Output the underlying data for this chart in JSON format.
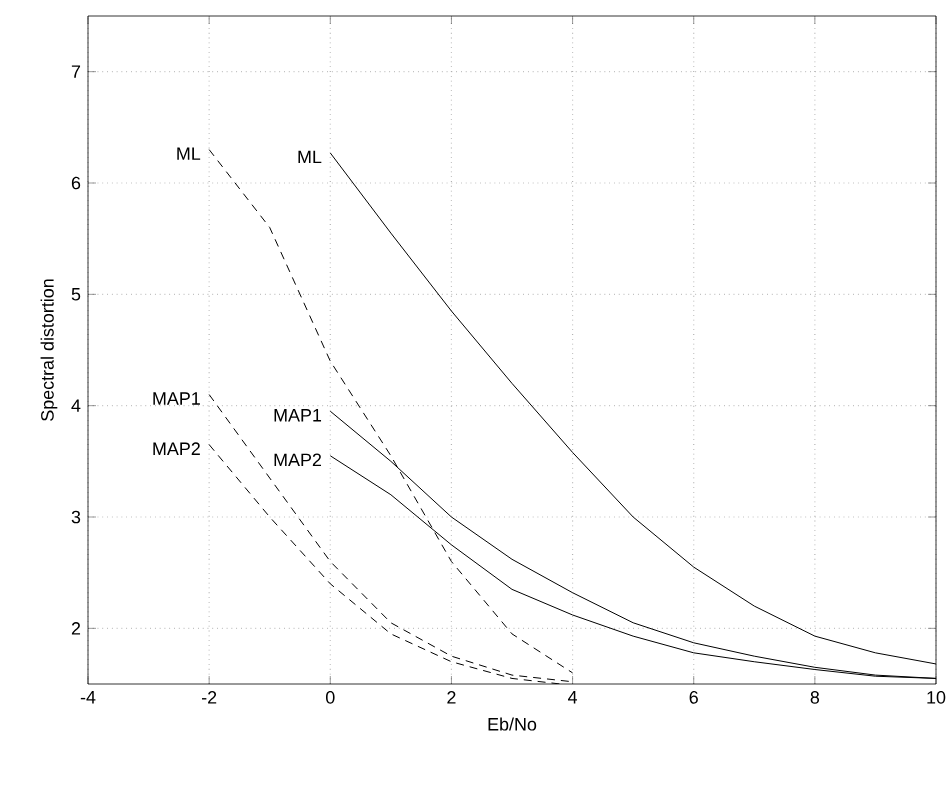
{
  "chart_data": {
    "type": "line",
    "xlabel": "Eb/No",
    "ylabel": "Spectral distortion",
    "xlim": [
      -4,
      10
    ],
    "xticks": [
      -4,
      -2,
      0,
      2,
      4,
      6,
      8,
      10
    ],
    "ylim": [
      1.5,
      7.5
    ],
    "yticks": [
      2,
      3,
      4,
      5,
      6,
      7
    ],
    "grid": true,
    "series": [
      {
        "name": "ML",
        "color": "#000000",
        "line_style": "dashed",
        "x": [
          -2,
          -1,
          0,
          1,
          2,
          3,
          4
        ],
        "values": [
          6.3,
          5.6,
          4.4,
          3.55,
          2.6,
          1.95,
          1.6
        ]
      },
      {
        "name": "MAP1",
        "color": "#000000",
        "line_style": "dashed",
        "x": [
          -2,
          -1,
          0,
          1,
          2,
          3,
          4
        ],
        "values": [
          4.1,
          3.35,
          2.6,
          2.05,
          1.75,
          1.58,
          1.52
        ]
      },
      {
        "name": "MAP2",
        "color": "#000000",
        "line_style": "dashed",
        "x": [
          -2,
          -1,
          0,
          1,
          2,
          3,
          3.8
        ],
        "values": [
          3.65,
          3.0,
          2.4,
          1.95,
          1.7,
          1.55,
          1.5
        ]
      },
      {
        "name": "ML",
        "color": "#000000",
        "line_style": "solid",
        "x": [
          0,
          1,
          2,
          3,
          4,
          5,
          6,
          7,
          8,
          9,
          10
        ],
        "values": [
          6.27,
          5.55,
          4.85,
          4.2,
          3.58,
          3.0,
          2.55,
          2.2,
          1.93,
          1.78,
          1.68
        ]
      },
      {
        "name": "MAP1",
        "color": "#000000",
        "line_style": "solid",
        "x": [
          0,
          1,
          2,
          3,
          4,
          5,
          6,
          7,
          8,
          9,
          10
        ],
        "values": [
          3.95,
          3.5,
          3.0,
          2.62,
          2.32,
          2.05,
          1.87,
          1.75,
          1.65,
          1.58,
          1.55
        ]
      },
      {
        "name": "MAP2",
        "color": "#000000",
        "line_style": "solid",
        "x": [
          0,
          1,
          2,
          3,
          4,
          5,
          6,
          7,
          8,
          9,
          10
        ],
        "values": [
          3.55,
          3.2,
          2.75,
          2.35,
          2.12,
          1.93,
          1.78,
          1.7,
          1.63,
          1.57,
          1.55
        ]
      }
    ]
  }
}
